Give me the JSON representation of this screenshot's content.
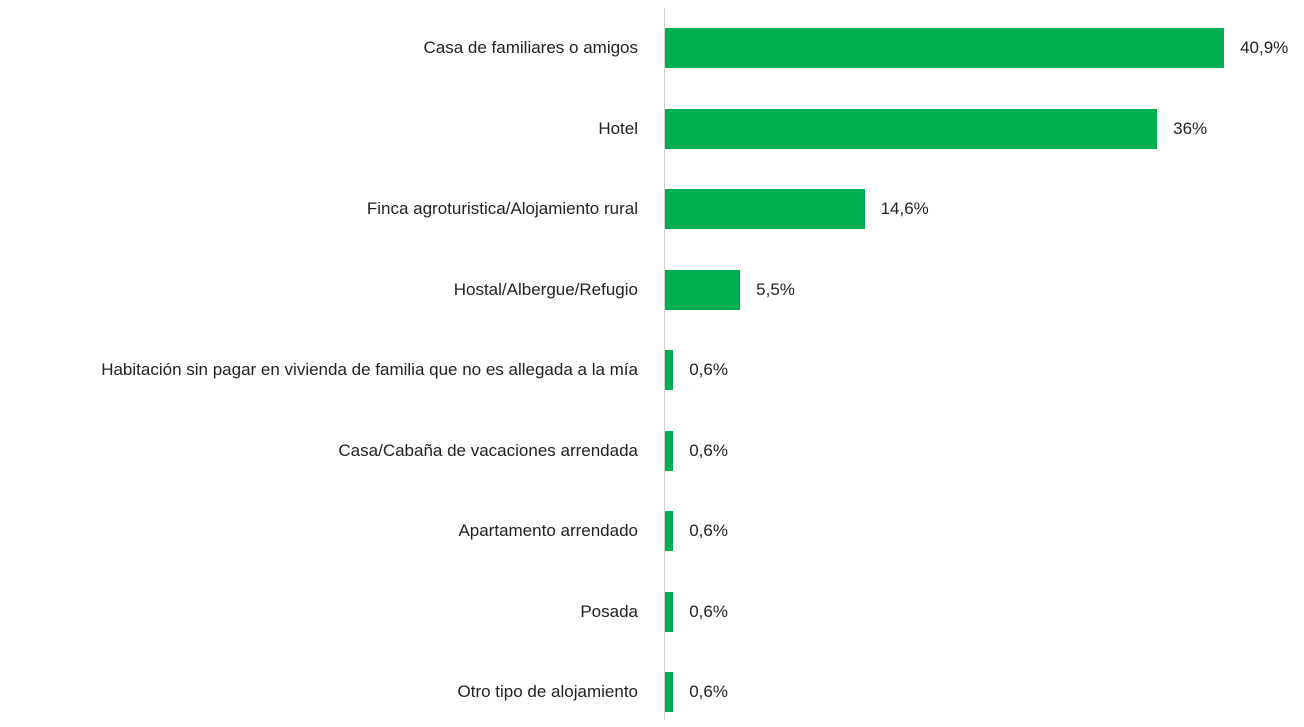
{
  "chart_data": {
    "type": "bar",
    "orientation": "horizontal",
    "categories": [
      "Casa de familiares o amigos",
      "Hotel",
      "Finca agroturistica/Alojamiento rural",
      "Hostal/Albergue/Refugio",
      "Habitación sin pagar en vivienda de familia que no es allegada a la mía",
      "Casa/Cabaña de vacaciones arrendada",
      "Apartamento arrendado",
      "Posada",
      "Otro tipo de alojamiento"
    ],
    "values": [
      40.9,
      36,
      14.6,
      5.5,
      0.6,
      0.6,
      0.6,
      0.6,
      0.6
    ],
    "value_labels": [
      "40,9%",
      "36%",
      "14,6%",
      "5,5%",
      "0,6%",
      "0,6%",
      "0,6%",
      "0,6%",
      "0,6%"
    ],
    "color": "#00b050"
  }
}
